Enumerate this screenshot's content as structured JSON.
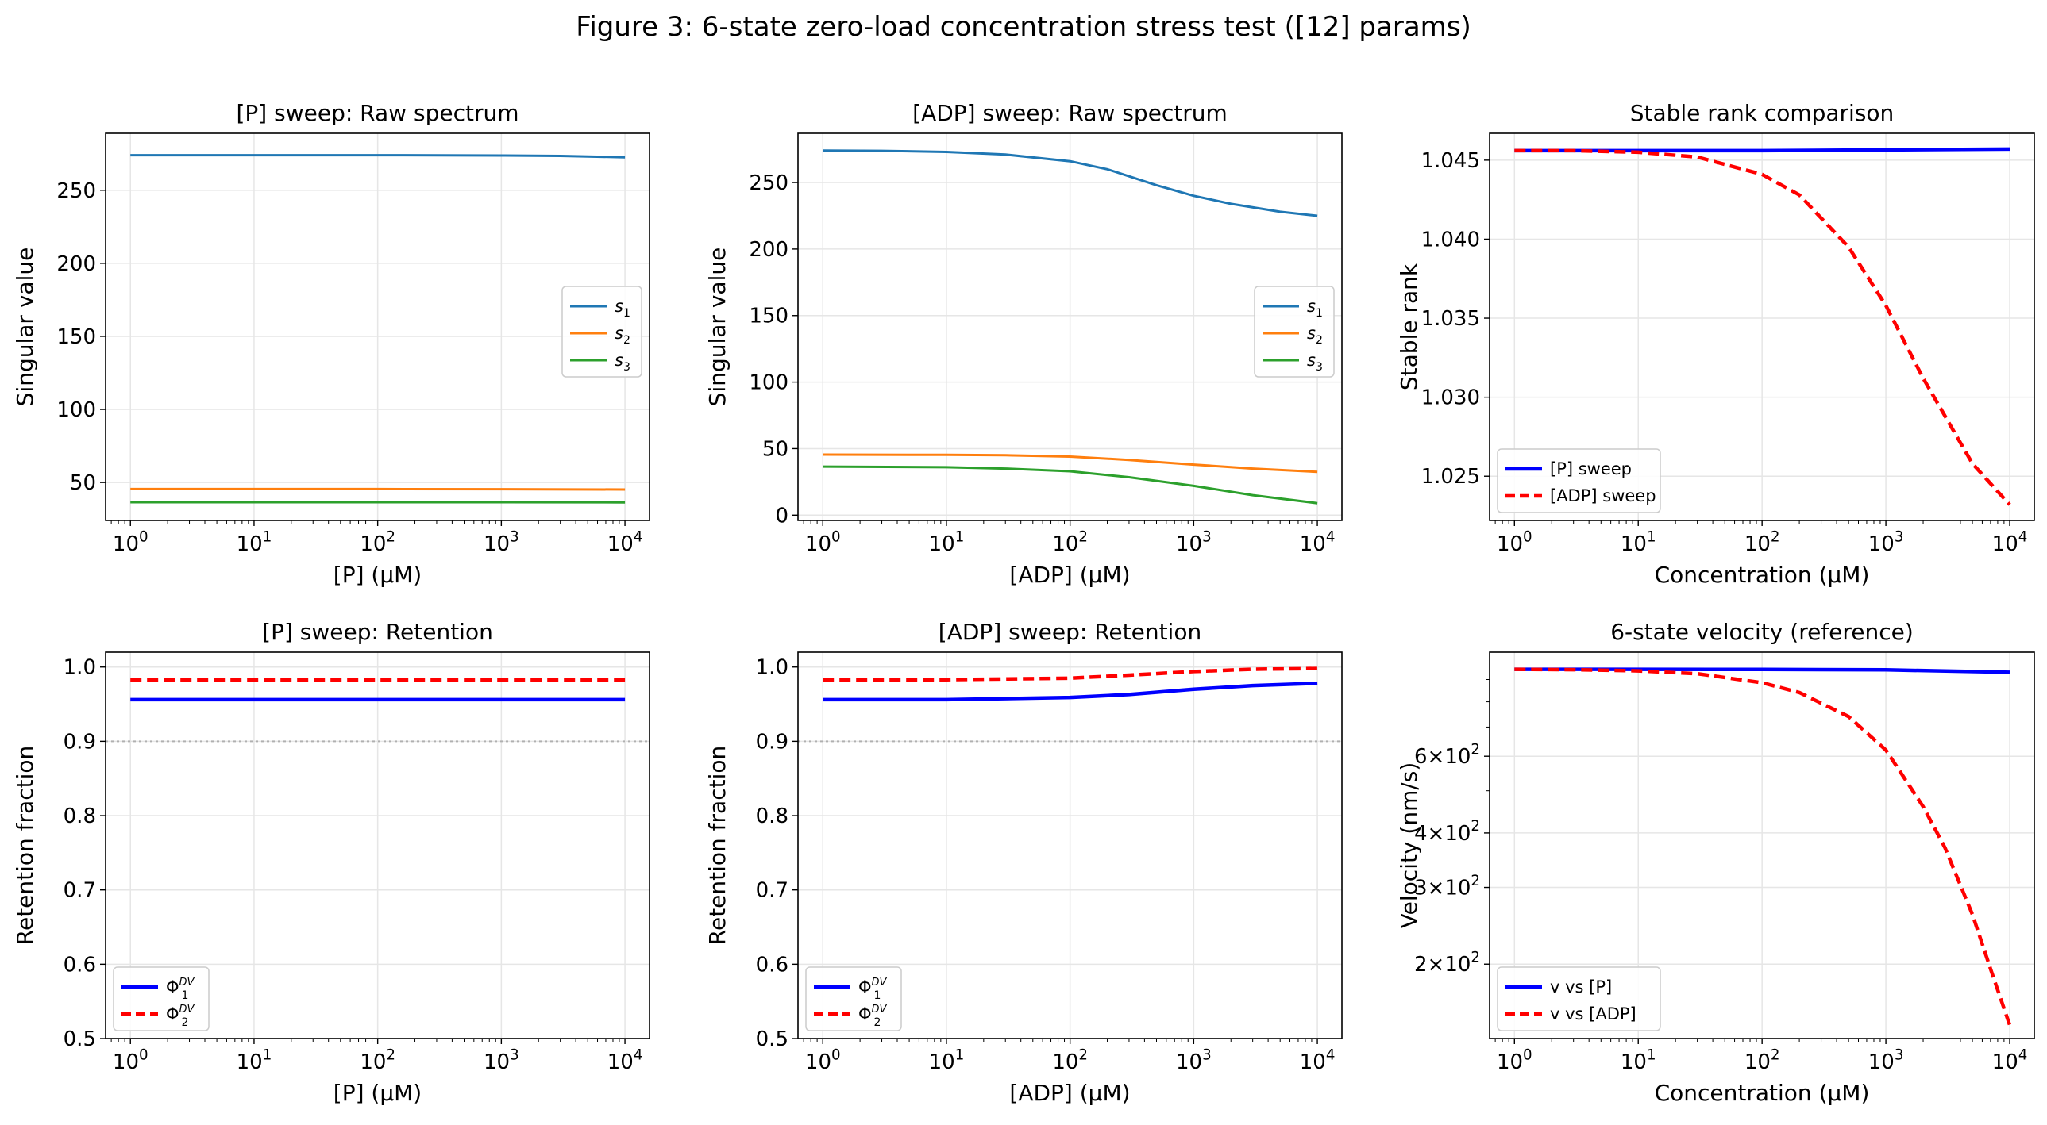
{
  "title": "Figure 3: 6-state zero-load concentration stress test ([12] params)",
  "colors": {
    "s1": "#1f77b4",
    "s2": "#ff7f0e",
    "s3": "#2ca02c",
    "p_sweep": "#0000ff",
    "adp_sweep": "#ff0000",
    "grid": "#e6e6e6",
    "ref": "#b0b0b0"
  },
  "chart_data": [
    {
      "id": "p-raw-spectrum",
      "type": "line",
      "title": "[P] sweep: Raw spectrum",
      "xlabel": "[P] (μM)",
      "ylabel": "Singular value",
      "xscale": "log",
      "xlim": [
        0.63,
        15800
      ],
      "ylim": [
        24,
        289
      ],
      "xticks": [
        1,
        10,
        100,
        1000,
        10000
      ],
      "xticklabels": [
        [
          "10",
          "0"
        ],
        [
          "10",
          "1"
        ],
        [
          "10",
          "2"
        ],
        [
          "10",
          "3"
        ],
        [
          "10",
          "4"
        ]
      ],
      "yticks": [
        50,
        100,
        150,
        200,
        250
      ],
      "yticklabels": [
        "50",
        "100",
        "150",
        "200",
        "250"
      ],
      "legend": "center-right",
      "series": [
        {
          "name": "s",
          "sub": "1",
          "color": "s1",
          "dash": "solid",
          "x": [
            1,
            10,
            100,
            1000,
            3000,
            10000
          ],
          "y": [
            274,
            274,
            274,
            273.8,
            273.5,
            272.6
          ]
        },
        {
          "name": "s",
          "sub": "2",
          "color": "s2",
          "dash": "solid",
          "x": [
            1,
            10,
            100,
            1000,
            10000
          ],
          "y": [
            45.5,
            45.5,
            45.5,
            45.4,
            45.2
          ]
        },
        {
          "name": "s",
          "sub": "3",
          "color": "s3",
          "dash": "solid",
          "x": [
            1,
            10,
            100,
            1000,
            10000
          ],
          "y": [
            36.5,
            36.5,
            36.5,
            36.5,
            36.4
          ]
        }
      ]
    },
    {
      "id": "adp-raw-spectrum",
      "type": "line",
      "title": "[ADP] sweep: Raw spectrum",
      "xlabel": "[ADP] (μM)",
      "ylabel": "Singular value",
      "xscale": "log",
      "xlim": [
        0.63,
        15800
      ],
      "ylim": [
        -4,
        287
      ],
      "xticks": [
        1,
        10,
        100,
        1000,
        10000
      ],
      "xticklabels": [
        [
          "10",
          "0"
        ],
        [
          "10",
          "1"
        ],
        [
          "10",
          "2"
        ],
        [
          "10",
          "3"
        ],
        [
          "10",
          "4"
        ]
      ],
      "yticks": [
        0,
        50,
        100,
        150,
        200,
        250
      ],
      "yticklabels": [
        "0",
        "50",
        "100",
        "150",
        "200",
        "250"
      ],
      "legend": "center-right",
      "series": [
        {
          "name": "s",
          "sub": "1",
          "color": "s1",
          "dash": "solid",
          "x": [
            1,
            3,
            10,
            30,
            100,
            200,
            500,
            1000,
            2000,
            5000,
            10000
          ],
          "y": [
            274,
            273.8,
            273,
            271,
            266,
            260,
            248,
            240,
            234,
            228,
            225
          ]
        },
        {
          "name": "s",
          "sub": "2",
          "color": "s2",
          "dash": "solid",
          "x": [
            1,
            10,
            30,
            100,
            300,
            1000,
            3000,
            10000
          ],
          "y": [
            45.5,
            45.3,
            45,
            44,
            41.5,
            38,
            35,
            32.5
          ]
        },
        {
          "name": "s",
          "sub": "3",
          "color": "s3",
          "dash": "solid",
          "x": [
            1,
            10,
            30,
            100,
            300,
            1000,
            3000,
            10000
          ],
          "y": [
            36.5,
            36,
            35,
            33,
            28.5,
            22,
            15,
            9
          ]
        }
      ]
    },
    {
      "id": "stable-rank-comparison",
      "type": "line",
      "title": "Stable rank comparison",
      "xlabel": "Concentration (μM)",
      "ylabel": "Stable rank",
      "xscale": "log",
      "xlim": [
        0.63,
        15800
      ],
      "ylim": [
        1.0222,
        1.0467
      ],
      "xticks": [
        1,
        10,
        100,
        1000,
        10000
      ],
      "xticklabels": [
        [
          "10",
          "0"
        ],
        [
          "10",
          "1"
        ],
        [
          "10",
          "2"
        ],
        [
          "10",
          "3"
        ],
        [
          "10",
          "4"
        ]
      ],
      "yticks": [
        1.025,
        1.03,
        1.035,
        1.04,
        1.045
      ],
      "yticklabels": [
        "1.025",
        "1.030",
        "1.035",
        "1.040",
        "1.045"
      ],
      "legend": "lower-left",
      "series": [
        {
          "name": "[P] sweep",
          "color": "p_sweep",
          "dash": "solid",
          "x": [
            1,
            100,
            10000
          ],
          "y": [
            1.0456,
            1.0456,
            1.0457
          ]
        },
        {
          "name": "[ADP] sweep",
          "color": "adp_sweep",
          "dash": "dashed",
          "x": [
            1,
            3,
            10,
            30,
            100,
            200,
            500,
            1000,
            2000,
            5000,
            10000
          ],
          "y": [
            1.0456,
            1.0456,
            1.0455,
            1.0452,
            1.0441,
            1.0428,
            1.0395,
            1.0358,
            1.0312,
            1.0258,
            1.0232
          ]
        }
      ]
    },
    {
      "id": "p-retention",
      "type": "line",
      "title": "[P] sweep: Retention",
      "xlabel": "[P] (μM)",
      "ylabel": "Retention fraction",
      "xscale": "log",
      "xlim": [
        0.63,
        15800
      ],
      "ylim": [
        0.5,
        1.02
      ],
      "xticks": [
        1,
        10,
        100,
        1000,
        10000
      ],
      "xticklabels": [
        [
          "10",
          "0"
        ],
        [
          "10",
          "1"
        ],
        [
          "10",
          "2"
        ],
        [
          "10",
          "3"
        ],
        [
          "10",
          "4"
        ]
      ],
      "yticks": [
        0.5,
        0.6,
        0.7,
        0.8,
        0.9,
        1.0
      ],
      "yticklabels": [
        "0.5",
        "0.6",
        "0.7",
        "0.8",
        "0.9",
        "1.0"
      ],
      "hline": 0.9,
      "legend": "lower-left",
      "series": [
        {
          "name": "Φ",
          "sub": "1",
          "sup": "DV",
          "color": "p_sweep",
          "dash": "solid",
          "x": [
            1,
            10000
          ],
          "y": [
            0.956,
            0.956
          ]
        },
        {
          "name": "Φ",
          "sub": "2",
          "sup": "DV",
          "color": "adp_sweep",
          "dash": "dashed",
          "x": [
            1,
            10000
          ],
          "y": [
            0.983,
            0.983
          ]
        }
      ]
    },
    {
      "id": "adp-retention",
      "type": "line",
      "title": "[ADP] sweep: Retention",
      "xlabel": "[ADP] (μM)",
      "ylabel": "Retention fraction",
      "xscale": "log",
      "xlim": [
        0.63,
        15800
      ],
      "ylim": [
        0.5,
        1.02
      ],
      "xticks": [
        1,
        10,
        100,
        1000,
        10000
      ],
      "xticklabels": [
        [
          "10",
          "0"
        ],
        [
          "10",
          "1"
        ],
        [
          "10",
          "2"
        ],
        [
          "10",
          "3"
        ],
        [
          "10",
          "4"
        ]
      ],
      "yticks": [
        0.5,
        0.6,
        0.7,
        0.8,
        0.9,
        1.0
      ],
      "yticklabels": [
        "0.5",
        "0.6",
        "0.7",
        "0.8",
        "0.9",
        "1.0"
      ],
      "hline": 0.9,
      "legend": "lower-left",
      "series": [
        {
          "name": "Φ",
          "sub": "1",
          "sup": "DV",
          "color": "p_sweep",
          "dash": "solid",
          "x": [
            1,
            10,
            100,
            300,
            1000,
            3000,
            10000
          ],
          "y": [
            0.956,
            0.956,
            0.959,
            0.963,
            0.97,
            0.975,
            0.978
          ]
        },
        {
          "name": "Φ",
          "sub": "2",
          "sup": "DV",
          "color": "adp_sweep",
          "dash": "dashed",
          "x": [
            1,
            10,
            100,
            300,
            1000,
            3000,
            10000
          ],
          "y": [
            0.983,
            0.983,
            0.985,
            0.989,
            0.994,
            0.997,
            0.998
          ]
        }
      ]
    },
    {
      "id": "velocity-reference",
      "type": "line",
      "title": "6-state velocity (reference)",
      "xlabel": "Concentration (μM)",
      "ylabel": "Velocity (nm/s)",
      "xscale": "log",
      "yscale": "log",
      "xlim": [
        0.63,
        15800
      ],
      "ylim": [
        135,
        1040
      ],
      "xticks": [
        1,
        10,
        100,
        1000,
        10000
      ],
      "xticklabels": [
        [
          "10",
          "0"
        ],
        [
          "10",
          "1"
        ],
        [
          "10",
          "2"
        ],
        [
          "10",
          "3"
        ],
        [
          "10",
          "4"
        ]
      ],
      "yticks": [
        200,
        300,
        400,
        600
      ],
      "yticklabels": [
        [
          "2",
          "2"
        ],
        [
          "3",
          "2"
        ],
        [
          "4",
          "2"
        ],
        [
          "6",
          "2"
        ]
      ],
      "yminor": [
        500,
        700,
        800,
        900
      ],
      "legend": "lower-left",
      "series": [
        {
          "name": "v vs [P]",
          "color": "p_sweep",
          "dash": "solid",
          "x": [
            1,
            100,
            1000,
            10000
          ],
          "y": [
            950,
            949,
            947,
            935
          ]
        },
        {
          "name": "v vs [ADP]",
          "color": "adp_sweep",
          "dash": "dashed",
          "x": [
            1,
            3,
            10,
            30,
            100,
            200,
            500,
            1000,
            2000,
            3000,
            5000,
            7000,
            10000
          ],
          "y": [
            950,
            948,
            942,
            928,
            885,
            840,
            740,
            620,
            460,
            370,
            260,
            195,
            145
          ]
        }
      ]
    }
  ]
}
